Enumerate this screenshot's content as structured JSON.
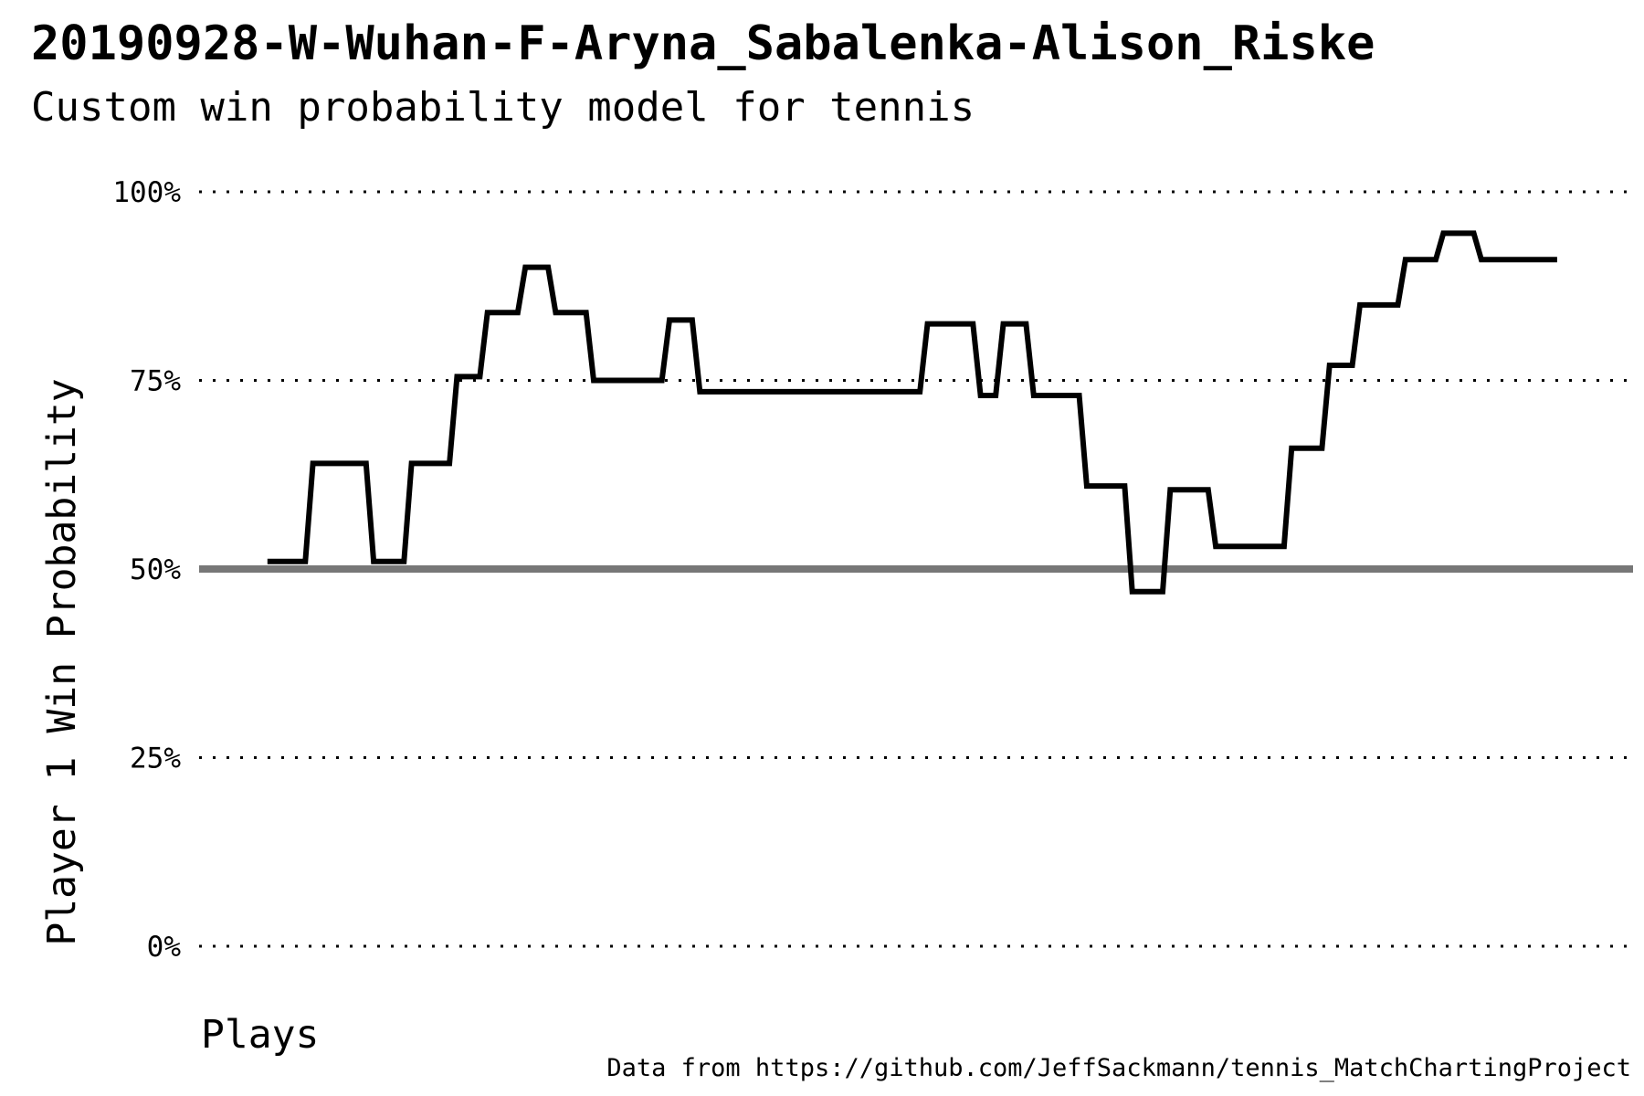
{
  "title": "20190928-W-Wuhan-F-Aryna_Sabalenka-Alison_Riske",
  "subtitle": "Custom win probability model for tennis",
  "caption": "Data from https://github.com/JeffSackmann/tennis_MatchChartingProject",
  "colors": {
    "line": "#000000",
    "reference_line": "#777777",
    "grid": "#000000"
  },
  "chart_data": {
    "type": "line",
    "xlabel": "Plays",
    "ylabel": "Player 1 Win Probability",
    "ylim": [
      0,
      100
    ],
    "xlim": [
      -9,
      180
    ],
    "yticks": [
      {
        "value": 0,
        "label": "0%"
      },
      {
        "value": 25,
        "label": "25%"
      },
      {
        "value": 50,
        "label": "50%"
      },
      {
        "value": 75,
        "label": "75%"
      },
      {
        "value": 100,
        "label": "100%"
      }
    ],
    "grid": "horizontal-dotted",
    "reference_line": 50,
    "series": [
      {
        "x": [
          0,
          5,
          6,
          13,
          14,
          18,
          19,
          24,
          25,
          26,
          28,
          29,
          33,
          34,
          37,
          38,
          42,
          43,
          52,
          53,
          56,
          57,
          60,
          61,
          71,
          72,
          86,
          87,
          93,
          94,
          96,
          97,
          100,
          101,
          107,
          108,
          113,
          114,
          118,
          119,
          124,
          125,
          129,
          130,
          134,
          135,
          139,
          140,
          143,
          144,
          149,
          150,
          154,
          155,
          159,
          160,
          164,
          165,
          170
        ],
        "y": [
          51,
          51,
          64,
          64,
          51,
          51,
          64,
          64,
          75.5,
          75.5,
          75.5,
          84,
          84,
          90,
          90,
          84,
          84,
          75,
          75,
          83,
          83,
          73.5,
          73.5,
          73.5,
          73.5,
          73.5,
          73.5,
          82.5,
          82.5,
          73,
          73,
          82.5,
          82.5,
          73,
          73,
          61,
          61,
          47,
          47,
          60.5,
          60.5,
          53,
          53,
          53,
          53,
          66,
          66,
          77,
          77,
          85,
          85,
          91,
          91,
          94.5,
          94.5,
          91,
          91,
          91,
          91
        ]
      }
    ]
  }
}
